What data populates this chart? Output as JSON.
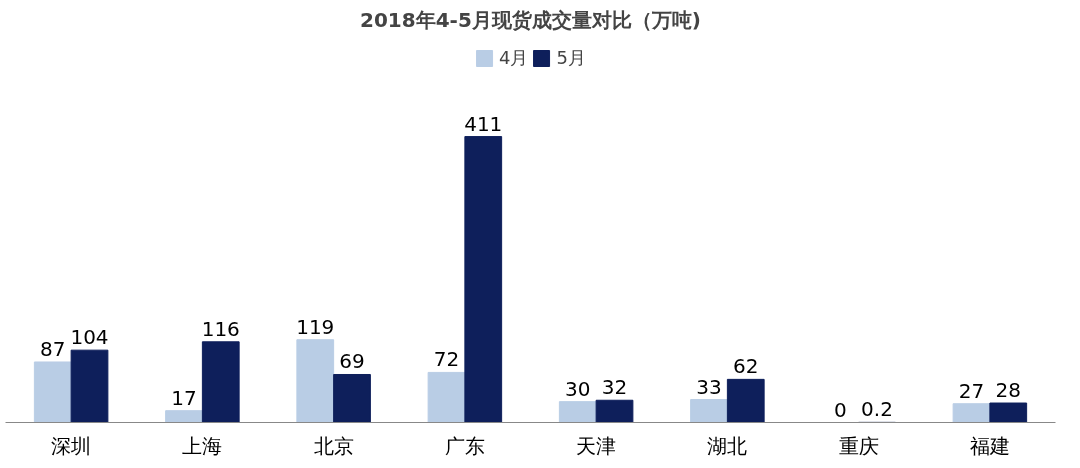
{
  "chart_data": {
    "type": "bar",
    "title": "2018年4-5月现货成交量对比（万吨)",
    "categories": [
      "深圳",
      "上海",
      "北京",
      "广东",
      "天津",
      "湖北",
      "重庆",
      "福建"
    ],
    "series": [
      {
        "name": "4月",
        "color": "#b9cde5",
        "values": [
          87,
          17,
          119,
          72,
          30,
          33,
          0,
          27
        ]
      },
      {
        "name": "5月",
        "color": "#0e1f5b",
        "values": [
          104,
          116,
          69,
          411,
          32,
          62,
          0.2,
          28
        ]
      }
    ],
    "data_labels": true,
    "legend": "top"
  }
}
